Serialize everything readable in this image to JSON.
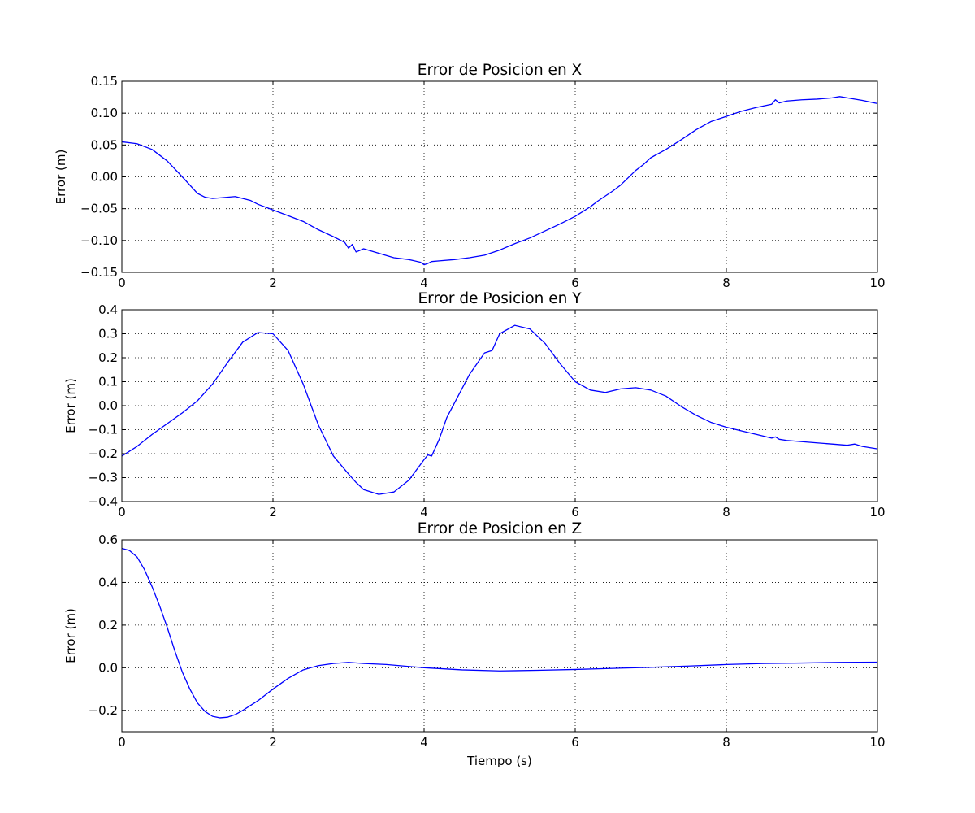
{
  "colors": {
    "line": "#0000ff",
    "axes": "#000000",
    "grid": "#000000",
    "background": "#ffffff"
  },
  "chart_data": [
    {
      "type": "line",
      "title": "Error de Posicion en X",
      "xlabel": "",
      "ylabel": "Error (m)",
      "xlim": [
        0,
        10
      ],
      "ylim": [
        -0.15,
        0.15
      ],
      "grid": true,
      "xticks": [
        0,
        2,
        4,
        6,
        8,
        10
      ],
      "xtick_labels": [
        "0",
        "2",
        "4",
        "6",
        "8",
        "10"
      ],
      "yticks": [
        -0.15,
        -0.1,
        -0.05,
        0.0,
        0.05,
        0.1,
        0.15
      ],
      "ytick_labels": [
        "−0.15",
        "−0.10",
        "−0.05",
        "0.00",
        "0.05",
        "0.10",
        "0.15"
      ],
      "series": [
        {
          "x": [
            0,
            0.2,
            0.4,
            0.6,
            0.8,
            1.0,
            1.1,
            1.2,
            1.3,
            1.5,
            1.7,
            1.8,
            2.0,
            2.2,
            2.4,
            2.6,
            2.8,
            2.95,
            3.0,
            3.05,
            3.1,
            3.2,
            3.4,
            3.6,
            3.8,
            3.95,
            4.0,
            4.05,
            4.1,
            4.2,
            4.4,
            4.6,
            4.8,
            5.0,
            5.2,
            5.4,
            5.6,
            5.8,
            6.0,
            6.2,
            6.3,
            6.4,
            6.5,
            6.6,
            6.8,
            6.9,
            7.0,
            7.2,
            7.4,
            7.6,
            7.8,
            8.0,
            8.2,
            8.4,
            8.6,
            8.65,
            8.7,
            8.8,
            9.0,
            9.2,
            9.4,
            9.5,
            9.6,
            9.8,
            10.0
          ],
          "y": [
            0.055,
            0.052,
            0.043,
            0.025,
            0.0,
            -0.026,
            -0.032,
            -0.034,
            -0.033,
            -0.031,
            -0.037,
            -0.043,
            -0.052,
            -0.061,
            -0.07,
            -0.083,
            -0.094,
            -0.103,
            -0.112,
            -0.106,
            -0.118,
            -0.113,
            -0.12,
            -0.127,
            -0.13,
            -0.134,
            -0.138,
            -0.136,
            -0.133,
            -0.132,
            -0.13,
            -0.127,
            -0.123,
            -0.115,
            -0.105,
            -0.096,
            -0.085,
            -0.074,
            -0.062,
            -0.047,
            -0.038,
            -0.03,
            -0.022,
            -0.013,
            0.01,
            0.019,
            0.03,
            0.043,
            0.058,
            0.074,
            0.087,
            0.095,
            0.103,
            0.109,
            0.114,
            0.121,
            0.116,
            0.119,
            0.121,
            0.122,
            0.124,
            0.126,
            0.124,
            0.12,
            0.115
          ]
        }
      ]
    },
    {
      "type": "line",
      "title": "Error de Posicion en Y",
      "xlabel": "",
      "ylabel": "Error (m)",
      "xlim": [
        0,
        10
      ],
      "ylim": [
        -0.4,
        0.4
      ],
      "grid": true,
      "xticks": [
        0,
        2,
        4,
        6,
        8,
        10
      ],
      "xtick_labels": [
        "0",
        "2",
        "4",
        "6",
        "8",
        "10"
      ],
      "yticks": [
        -0.4,
        -0.3,
        -0.2,
        -0.1,
        0.0,
        0.1,
        0.2,
        0.3,
        0.4
      ],
      "ytick_labels": [
        "−0.4",
        "−0.3",
        "−0.2",
        "−0.1",
        "0.0",
        "0.1",
        "0.2",
        "0.3",
        "0.4"
      ],
      "series": [
        {
          "x": [
            0,
            0.2,
            0.4,
            0.6,
            0.8,
            1.0,
            1.2,
            1.4,
            1.6,
            1.8,
            2.0,
            2.2,
            2.4,
            2.6,
            2.8,
            3.0,
            3.1,
            3.2,
            3.4,
            3.6,
            3.8,
            4.0,
            4.05,
            4.1,
            4.2,
            4.3,
            4.4,
            4.6,
            4.8,
            4.9,
            5.0,
            5.2,
            5.4,
            5.6,
            5.8,
            6.0,
            6.2,
            6.4,
            6.6,
            6.8,
            7.0,
            7.2,
            7.4,
            7.6,
            7.8,
            8.0,
            8.2,
            8.4,
            8.6,
            8.65,
            8.7,
            8.8,
            9.0,
            9.2,
            9.4,
            9.6,
            9.7,
            9.8,
            10.0
          ],
          "y": [
            -0.21,
            -0.17,
            -0.12,
            -0.075,
            -0.03,
            0.02,
            0.09,
            0.18,
            0.265,
            0.305,
            0.3,
            0.23,
            0.09,
            -0.08,
            -0.21,
            -0.285,
            -0.32,
            -0.35,
            -0.37,
            -0.36,
            -0.31,
            -0.225,
            -0.205,
            -0.21,
            -0.14,
            -0.05,
            0.01,
            0.13,
            0.22,
            0.23,
            0.3,
            0.335,
            0.32,
            0.26,
            0.175,
            0.1,
            0.065,
            0.055,
            0.07,
            0.075,
            0.065,
            0.04,
            -0.003,
            -0.04,
            -0.07,
            -0.09,
            -0.105,
            -0.12,
            -0.135,
            -0.13,
            -0.14,
            -0.145,
            -0.15,
            -0.155,
            -0.16,
            -0.165,
            -0.16,
            -0.17,
            -0.18
          ]
        }
      ]
    },
    {
      "type": "line",
      "title": "Error de Posicion en Z",
      "xlabel": "Tiempo (s)",
      "ylabel": "Error (m)",
      "xlim": [
        0,
        10
      ],
      "ylim": [
        -0.3,
        0.6
      ],
      "grid": true,
      "xticks": [
        0,
        2,
        4,
        6,
        8,
        10
      ],
      "xtick_labels": [
        "0",
        "2",
        "4",
        "6",
        "8",
        "10"
      ],
      "yticks": [
        -0.2,
        0.0,
        0.2,
        0.4,
        0.6
      ],
      "ytick_labels": [
        "−0.2",
        "0.0",
        "0.2",
        "0.4",
        "0.6"
      ],
      "series": [
        {
          "x": [
            0,
            0.1,
            0.2,
            0.3,
            0.4,
            0.5,
            0.6,
            0.7,
            0.8,
            0.9,
            1.0,
            1.1,
            1.2,
            1.3,
            1.4,
            1.5,
            1.6,
            1.8,
            2.0,
            2.2,
            2.4,
            2.6,
            2.8,
            3.0,
            3.2,
            3.5,
            4.0,
            4.5,
            5.0,
            5.5,
            6.0,
            6.5,
            7.0,
            7.5,
            8.0,
            8.5,
            9.0,
            9.5,
            10.0
          ],
          "y": [
            0.56,
            0.55,
            0.52,
            0.46,
            0.38,
            0.29,
            0.19,
            0.08,
            -0.02,
            -0.1,
            -0.165,
            -0.205,
            -0.228,
            -0.235,
            -0.232,
            -0.22,
            -0.2,
            -0.155,
            -0.1,
            -0.05,
            -0.01,
            0.01,
            0.02,
            0.025,
            0.02,
            0.015,
            0.0,
            -0.01,
            -0.015,
            -0.012,
            -0.008,
            -0.003,
            0.002,
            0.008,
            0.015,
            0.02,
            0.022,
            0.025,
            0.026
          ]
        }
      ]
    }
  ]
}
